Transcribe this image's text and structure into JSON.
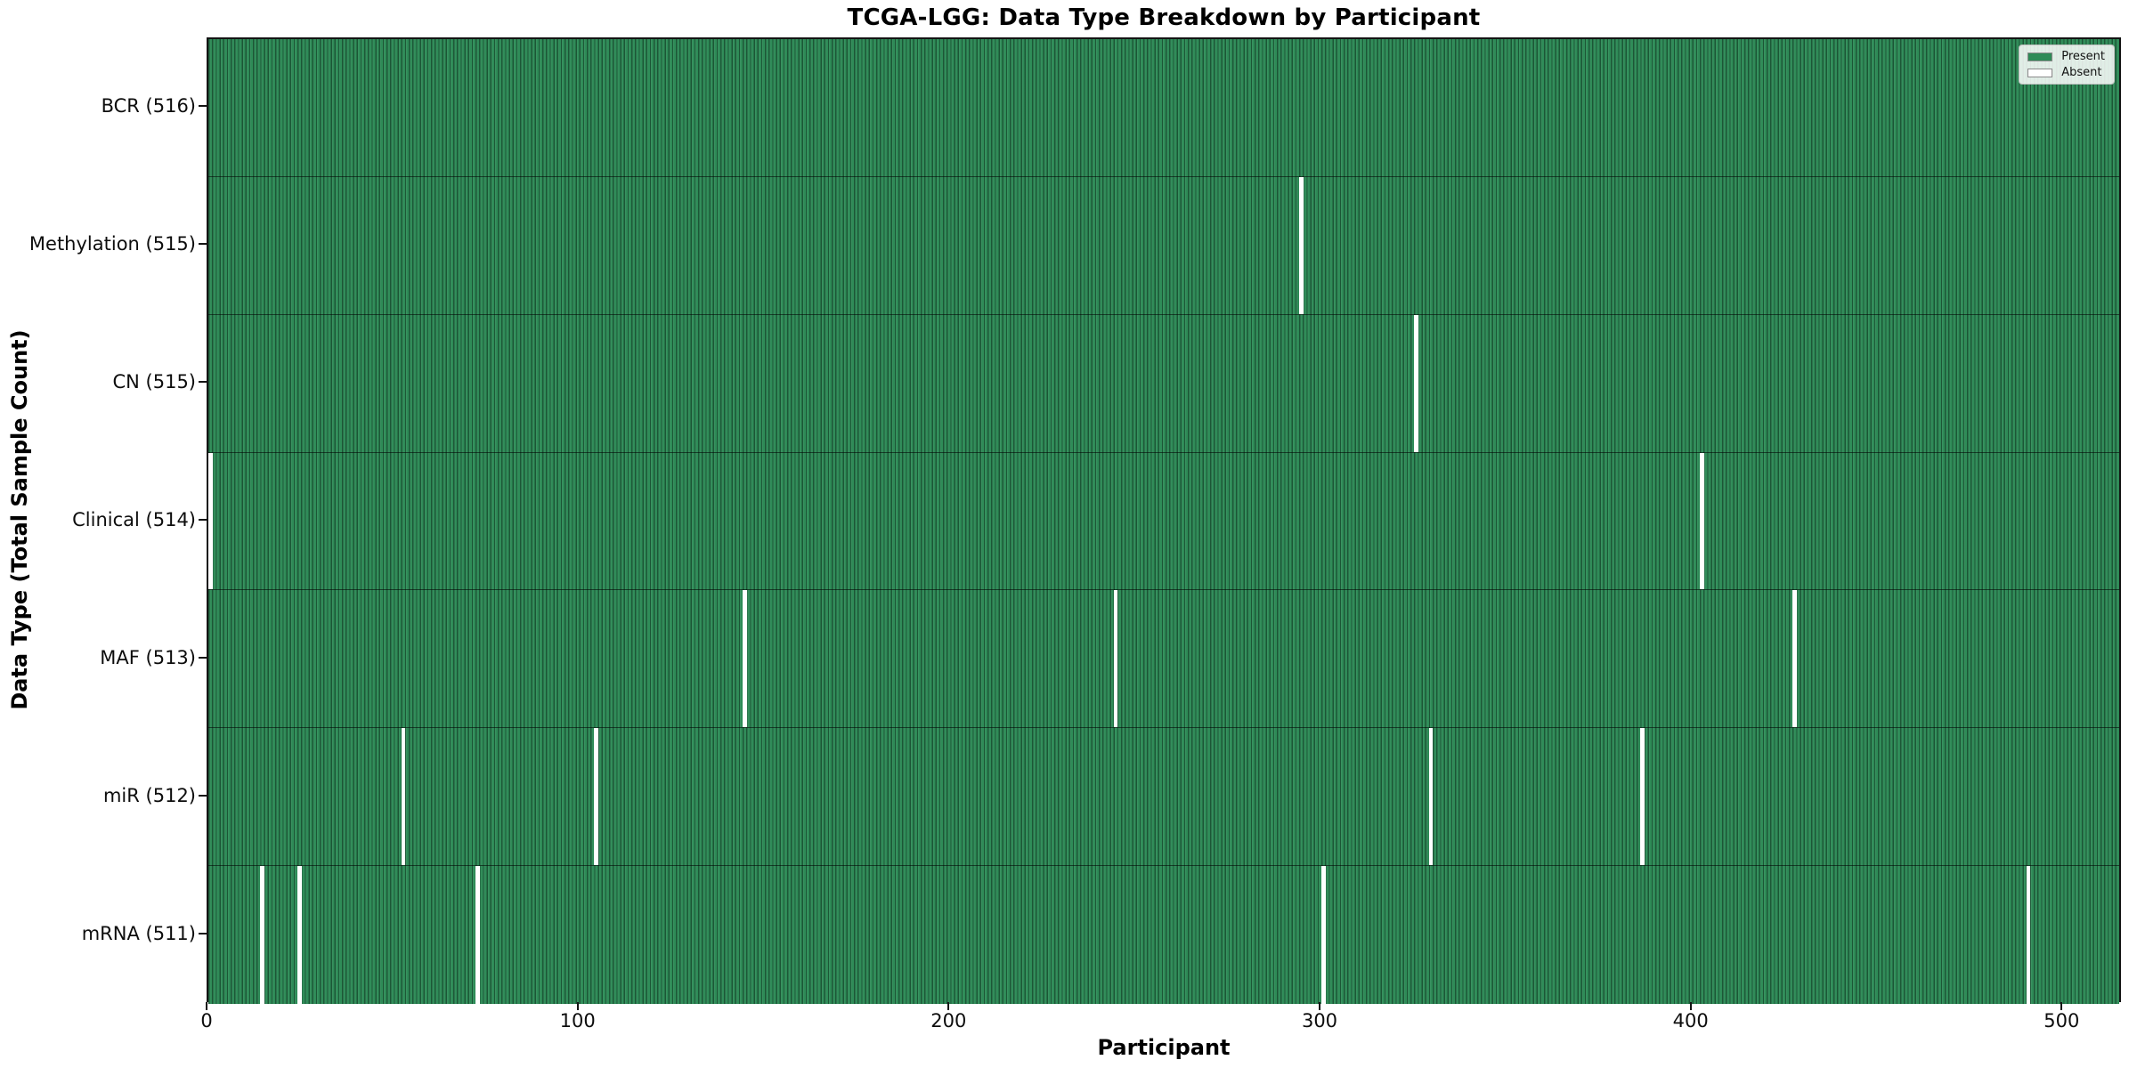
{
  "figure": {
    "title": "TCGA-LGG: Data Type Breakdown by Participant",
    "xlabel": "Participant",
    "ylabel": "Data Type (Total Sample Count)"
  },
  "legend": {
    "entries": [
      {
        "label": "Present",
        "color": "#2e8b57"
      },
      {
        "label": "Absent",
        "color": "#ffffff"
      }
    ]
  },
  "colors": {
    "present": "#2e8b57",
    "absent": "#ffffff",
    "frame": "#141414"
  },
  "chart_data": {
    "type": "heatmap",
    "title": "TCGA-LGG: Data Type Breakdown by Participant",
    "xlabel": "Participant",
    "ylabel": "Data Type (Total Sample Count)",
    "legend_position": "upper right",
    "n_participants": 516,
    "xlim": [
      0,
      516
    ],
    "x_ticks": [
      0,
      100,
      200,
      300,
      400,
      500
    ],
    "present_color": "#2e8b57",
    "absent_color": "#ffffff",
    "rows": [
      {
        "data_type": "BCR",
        "label": "BCR (516)",
        "present_count": 516,
        "absent_participants": []
      },
      {
        "data_type": "Methylation",
        "label": "Methylation (515)",
        "present_count": 515,
        "absent_participants": [
          294
        ]
      },
      {
        "data_type": "CN",
        "label": "CN (515)",
        "present_count": 515,
        "absent_participants": [
          325
        ]
      },
      {
        "data_type": "Clinical",
        "label": "Clinical (514)",
        "present_count": 514,
        "absent_participants": [
          0,
          402
        ]
      },
      {
        "data_type": "MAF",
        "label": "MAF (513)",
        "present_count": 513,
        "absent_participants": [
          144,
          244,
          427
        ]
      },
      {
        "data_type": "miR",
        "label": "miR (512)",
        "present_count": 512,
        "absent_participants": [
          52,
          104,
          329,
          386
        ]
      },
      {
        "data_type": "mRNA",
        "label": "mRNA (511)",
        "present_count": 511,
        "absent_participants": [
          14,
          24,
          72,
          300,
          490
        ]
      }
    ]
  }
}
